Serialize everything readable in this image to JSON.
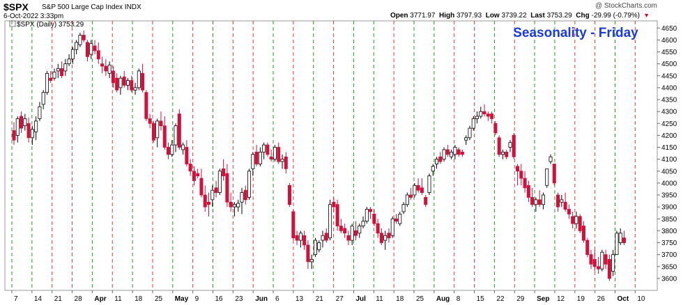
{
  "header": {
    "ticker": "$SPX",
    "name": "S&P 500 Large Cap Index",
    "exchange": "INDX",
    "datetime": "6-Oct-2022 3:33pm",
    "logo": "@ StockCharts.com",
    "open_label": "Open",
    "open": "3771.97",
    "high_label": "High",
    "high": "3797.93",
    "low_label": "Low",
    "low": "3739.22",
    "last_label": "Last",
    "last": "3753.29",
    "chg_label": "Chg",
    "chg": "-29.99 (-0.79%)",
    "chg_icon": "down-triangle-icon",
    "legend": "$SPX (Daily) 3753.29"
  },
  "colors": {
    "up": "#ffffff",
    "down": "#d3103a",
    "vline_red": "#e23a3a",
    "vline_green": "#239a23",
    "title": "#1a3ae0"
  },
  "chart_data": {
    "type": "candlestick",
    "title": "Seasonality - Friday",
    "ylim": [
      3550,
      4680
    ],
    "yticks": [
      3600,
      3650,
      3700,
      3750,
      3800,
      3850,
      3900,
      3950,
      4000,
      4050,
      4100,
      4150,
      4200,
      4250,
      4300,
      4350,
      4400,
      4450,
      4500,
      4550,
      4600,
      4650
    ],
    "xtick_labels": [
      "7",
      "14",
      "21",
      "28",
      "Apr",
      "11",
      "18",
      "25",
      "May",
      "9",
      "16",
      "23",
      "Jun",
      "6",
      "13",
      "21",
      "27",
      "Jul",
      "11",
      "18",
      "25",
      "Aug",
      "8",
      "15",
      "22",
      "29",
      "Sep",
      "12",
      "19",
      "26",
      "Oct",
      "10"
    ],
    "xtick_bold": [
      "Apr",
      "May",
      "Jun",
      "Jul",
      "Aug",
      "Sep",
      "Oct"
    ],
    "vertical_lines": {
      "red_friday_weeks": [
        2,
        3,
        5,
        7,
        9,
        11,
        12,
        14,
        16,
        19,
        22,
        23,
        25,
        28,
        29,
        31
      ],
      "green_friday_weeks": [
        0,
        1,
        4,
        6,
        8,
        10,
        13,
        15,
        17,
        18,
        20,
        21,
        24,
        26,
        27,
        30
      ]
    },
    "bars": [
      {
        "o": 4220,
        "h": 4255,
        "l": 4160,
        "c": 4180
      },
      {
        "o": 4200,
        "h": 4280,
        "l": 4170,
        "c": 4270
      },
      {
        "o": 4280,
        "h": 4300,
        "l": 4210,
        "c": 4230
      },
      {
        "o": 4240,
        "h": 4290,
        "l": 4220,
        "c": 4270
      },
      {
        "o": 4250,
        "h": 4275,
        "l": 4170,
        "c": 4190
      },
      {
        "o": 4190,
        "h": 4240,
        "l": 4160,
        "c": 4225
      },
      {
        "o": 4215,
        "h": 4280,
        "l": 4180,
        "c": 4260
      },
      {
        "o": 4270,
        "h": 4340,
        "l": 4260,
        "c": 4320
      },
      {
        "o": 4330,
        "h": 4390,
        "l": 4310,
        "c": 4380
      },
      {
        "o": 4380,
        "h": 4470,
        "l": 4370,
        "c": 4460
      },
      {
        "o": 4440,
        "h": 4470,
        "l": 4420,
        "c": 4430
      },
      {
        "o": 4440,
        "h": 4480,
        "l": 4430,
        "c": 4465
      },
      {
        "o": 4470,
        "h": 4500,
        "l": 4440,
        "c": 4480
      },
      {
        "o": 4480,
        "h": 4510,
        "l": 4440,
        "c": 4450
      },
      {
        "o": 4470,
        "h": 4520,
        "l": 4450,
        "c": 4500
      },
      {
        "o": 4500,
        "h": 4540,
        "l": 4490,
        "c": 4520
      },
      {
        "o": 4520,
        "h": 4570,
        "l": 4500,
        "c": 4560
      },
      {
        "o": 4560,
        "h": 4600,
        "l": 4540,
        "c": 4590
      },
      {
        "o": 4580,
        "h": 4630,
        "l": 4570,
        "c": 4620
      },
      {
        "o": 4620,
        "h": 4640,
        "l": 4590,
        "c": 4600
      },
      {
        "o": 4590,
        "h": 4600,
        "l": 4510,
        "c": 4530
      },
      {
        "o": 4540,
        "h": 4600,
        "l": 4520,
        "c": 4585
      },
      {
        "o": 4575,
        "h": 4600,
        "l": 4540,
        "c": 4555
      },
      {
        "o": 4555,
        "h": 4590,
        "l": 4500,
        "c": 4520
      },
      {
        "o": 4500,
        "h": 4530,
        "l": 4460,
        "c": 4490
      },
      {
        "o": 4490,
        "h": 4520,
        "l": 4450,
        "c": 4470
      },
      {
        "o": 4460,
        "h": 4510,
        "l": 4440,
        "c": 4495
      },
      {
        "o": 4470,
        "h": 4490,
        "l": 4400,
        "c": 4420
      },
      {
        "o": 4440,
        "h": 4460,
        "l": 4380,
        "c": 4390
      },
      {
        "o": 4400,
        "h": 4450,
        "l": 4370,
        "c": 4440
      },
      {
        "o": 4445,
        "h": 4470,
        "l": 4400,
        "c": 4410
      },
      {
        "o": 4410,
        "h": 4440,
        "l": 4390,
        "c": 4430
      },
      {
        "o": 4430,
        "h": 4450,
        "l": 4380,
        "c": 4390
      },
      {
        "o": 4390,
        "h": 4420,
        "l": 4370,
        "c": 4400
      },
      {
        "o": 4400,
        "h": 4480,
        "l": 4390,
        "c": 4470
      },
      {
        "o": 4460,
        "h": 4500,
        "l": 4380,
        "c": 4390
      },
      {
        "o": 4380,
        "h": 4390,
        "l": 4260,
        "c": 4270
      },
      {
        "o": 4270,
        "h": 4290,
        "l": 4230,
        "c": 4250
      },
      {
        "o": 4250,
        "h": 4260,
        "l": 4170,
        "c": 4180
      },
      {
        "o": 4190,
        "h": 4270,
        "l": 4150,
        "c": 4260
      },
      {
        "o": 4260,
        "h": 4300,
        "l": 4220,
        "c": 4240
      },
      {
        "o": 4240,
        "h": 4280,
        "l": 4140,
        "c": 4150
      },
      {
        "o": 4150,
        "h": 4170,
        "l": 4100,
        "c": 4120
      },
      {
        "o": 4120,
        "h": 4180,
        "l": 4110,
        "c": 4160
      },
      {
        "o": 4160,
        "h": 4250,
        "l": 4130,
        "c": 4240
      },
      {
        "o": 4290,
        "h": 4310,
        "l": 4140,
        "c": 4150
      },
      {
        "o": 4140,
        "h": 4170,
        "l": 4120,
        "c": 4160
      },
      {
        "o": 4150,
        "h": 4180,
        "l": 4070,
        "c": 4080
      },
      {
        "o": 4080,
        "h": 4100,
        "l": 4030,
        "c": 4050
      },
      {
        "o": 4050,
        "h": 4070,
        "l": 3990,
        "c": 4010
      },
      {
        "o": 4040,
        "h": 4060,
        "l": 4020,
        "c": 4030
      },
      {
        "o": 4020,
        "h": 4060,
        "l": 3940,
        "c": 3950
      },
      {
        "o": 3950,
        "h": 3990,
        "l": 3880,
        "c": 3900
      },
      {
        "o": 3920,
        "h": 3960,
        "l": 3860,
        "c": 3910
      },
      {
        "o": 3930,
        "h": 3990,
        "l": 3900,
        "c": 3970
      },
      {
        "o": 3980,
        "h": 4010,
        "l": 3940,
        "c": 3960
      },
      {
        "o": 3960,
        "h": 4060,
        "l": 3950,
        "c": 4050
      },
      {
        "o": 4060,
        "h": 4100,
        "l": 4010,
        "c": 4030
      },
      {
        "o": 4040,
        "h": 4080,
        "l": 3900,
        "c": 3920
      },
      {
        "o": 3920,
        "h": 3960,
        "l": 3880,
        "c": 3900
      },
      {
        "o": 3900,
        "h": 3920,
        "l": 3860,
        "c": 3910
      },
      {
        "o": 3900,
        "h": 3930,
        "l": 3880,
        "c": 3915
      },
      {
        "o": 3920,
        "h": 3980,
        "l": 3870,
        "c": 3960
      },
      {
        "o": 3970,
        "h": 3990,
        "l": 3910,
        "c": 3930
      },
      {
        "o": 3940,
        "h": 4060,
        "l": 3930,
        "c": 4050
      },
      {
        "o": 4060,
        "h": 4130,
        "l": 4030,
        "c": 4120
      },
      {
        "o": 4130,
        "h": 4160,
        "l": 4070,
        "c": 4080
      },
      {
        "o": 4080,
        "h": 4150,
        "l": 4070,
        "c": 4130
      },
      {
        "o": 4130,
        "h": 4170,
        "l": 4100,
        "c": 4160
      },
      {
        "o": 4160,
        "h": 4170,
        "l": 4110,
        "c": 4120
      },
      {
        "o": 4110,
        "h": 4140,
        "l": 4090,
        "c": 4100
      },
      {
        "o": 4100,
        "h": 4160,
        "l": 4090,
        "c": 4150
      },
      {
        "o": 4150,
        "h": 4170,
        "l": 4080,
        "c": 4090
      },
      {
        "o": 4090,
        "h": 4120,
        "l": 4060,
        "c": 4100
      },
      {
        "o": 4110,
        "h": 4130,
        "l": 4040,
        "c": 4060
      },
      {
        "o": 3990,
        "h": 4000,
        "l": 3900,
        "c": 3910
      },
      {
        "o": 3880,
        "h": 3890,
        "l": 3760,
        "c": 3770
      },
      {
        "o": 3780,
        "h": 3800,
        "l": 3740,
        "c": 3760
      },
      {
        "o": 3760,
        "h": 3800,
        "l": 3730,
        "c": 3790
      },
      {
        "o": 3780,
        "h": 3800,
        "l": 3720,
        "c": 3740
      },
      {
        "o": 3740,
        "h": 3760,
        "l": 3640,
        "c": 3670
      },
      {
        "o": 3670,
        "h": 3700,
        "l": 3640,
        "c": 3680
      },
      {
        "o": 3700,
        "h": 3770,
        "l": 3690,
        "c": 3760
      },
      {
        "o": 3720,
        "h": 3760,
        "l": 3710,
        "c": 3750
      },
      {
        "o": 3760,
        "h": 3800,
        "l": 3730,
        "c": 3780
      },
      {
        "o": 3790,
        "h": 3810,
        "l": 3750,
        "c": 3760
      },
      {
        "o": 3770,
        "h": 3930,
        "l": 3760,
        "c": 3910
      },
      {
        "o": 3920,
        "h": 3940,
        "l": 3880,
        "c": 3900
      },
      {
        "o": 3910,
        "h": 3930,
        "l": 3800,
        "c": 3820
      },
      {
        "o": 3820,
        "h": 3850,
        "l": 3790,
        "c": 3800
      },
      {
        "o": 3810,
        "h": 3830,
        "l": 3770,
        "c": 3790
      },
      {
        "o": 3780,
        "h": 3800,
        "l": 3740,
        "c": 3760
      },
      {
        "o": 3760,
        "h": 3830,
        "l": 3740,
        "c": 3820
      },
      {
        "o": 3800,
        "h": 3840,
        "l": 3760,
        "c": 3780
      },
      {
        "o": 3790,
        "h": 3830,
        "l": 3770,
        "c": 3820
      },
      {
        "o": 3820,
        "h": 3860,
        "l": 3810,
        "c": 3840
      },
      {
        "o": 3840,
        "h": 3900,
        "l": 3830,
        "c": 3890
      },
      {
        "o": 3890,
        "h": 3900,
        "l": 3850,
        "c": 3880
      },
      {
        "o": 3870,
        "h": 3890,
        "l": 3820,
        "c": 3830
      },
      {
        "o": 3830,
        "h": 3850,
        "l": 3770,
        "c": 3790
      },
      {
        "o": 3790,
        "h": 3810,
        "l": 3740,
        "c": 3750
      },
      {
        "o": 3760,
        "h": 3800,
        "l": 3720,
        "c": 3780
      },
      {
        "o": 3790,
        "h": 3810,
        "l": 3750,
        "c": 3770
      },
      {
        "o": 3780,
        "h": 3860,
        "l": 3770,
        "c": 3850
      },
      {
        "o": 3850,
        "h": 3870,
        "l": 3830,
        "c": 3840
      },
      {
        "o": 3830,
        "h": 3880,
        "l": 3820,
        "c": 3870
      },
      {
        "o": 3880,
        "h": 3920,
        "l": 3870,
        "c": 3910
      },
      {
        "o": 3910,
        "h": 3960,
        "l": 3900,
        "c": 3950
      },
      {
        "o": 3950,
        "h": 3980,
        "l": 3930,
        "c": 3940
      },
      {
        "o": 3950,
        "h": 4000,
        "l": 3940,
        "c": 3990
      },
      {
        "o": 3990,
        "h": 4020,
        "l": 3960,
        "c": 3970
      },
      {
        "o": 3980,
        "h": 4020,
        "l": 3950,
        "c": 3960
      },
      {
        "o": 3940,
        "h": 3950,
        "l": 3900,
        "c": 3910
      },
      {
        "o": 3960,
        "h": 4040,
        "l": 3950,
        "c": 4030
      },
      {
        "o": 4050,
        "h": 4080,
        "l": 4030,
        "c": 4070
      },
      {
        "o": 4080,
        "h": 4110,
        "l": 4060,
        "c": 4100
      },
      {
        "o": 4110,
        "h": 4130,
        "l": 4080,
        "c": 4090
      },
      {
        "o": 4100,
        "h": 4150,
        "l": 4090,
        "c": 4140
      },
      {
        "o": 4140,
        "h": 4160,
        "l": 4110,
        "c": 4120
      },
      {
        "o": 4110,
        "h": 4140,
        "l": 4100,
        "c": 4130
      },
      {
        "o": 4120,
        "h": 4160,
        "l": 4100,
        "c": 4150
      },
      {
        "o": 4140,
        "h": 4150,
        "l": 4110,
        "c": 4120
      },
      {
        "o": 4130,
        "h": 4140,
        "l": 4110,
        "c": 4120
      },
      {
        "o": 4180,
        "h": 4200,
        "l": 4160,
        "c": 4190
      },
      {
        "o": 4190,
        "h": 4240,
        "l": 4180,
        "c": 4230
      },
      {
        "o": 4230,
        "h": 4280,
        "l": 4220,
        "c": 4270
      },
      {
        "o": 4270,
        "h": 4300,
        "l": 4250,
        "c": 4280
      },
      {
        "o": 4280,
        "h": 4320,
        "l": 4270,
        "c": 4300
      },
      {
        "o": 4300,
        "h": 4330,
        "l": 4280,
        "c": 4290
      },
      {
        "o": 4290,
        "h": 4300,
        "l": 4260,
        "c": 4280
      },
      {
        "o": 4290,
        "h": 4300,
        "l": 4250,
        "c": 4270
      },
      {
        "o": 4250,
        "h": 4260,
        "l": 4200,
        "c": 4210
      },
      {
        "o": 4190,
        "h": 4200,
        "l": 4110,
        "c": 4120
      },
      {
        "o": 4120,
        "h": 4140,
        "l": 4100,
        "c": 4130
      },
      {
        "o": 4130,
        "h": 4140,
        "l": 4100,
        "c": 4110
      },
      {
        "o": 4150,
        "h": 4180,
        "l": 4130,
        "c": 4170
      },
      {
        "o": 4200,
        "h": 4210,
        "l": 4100,
        "c": 4110
      },
      {
        "o": 4070,
        "h": 4080,
        "l": 3990,
        "c": 4050
      },
      {
        "o": 4050,
        "h": 4080,
        "l": 3990,
        "c": 4020
      },
      {
        "o": 4020,
        "h": 4050,
        "l": 3960,
        "c": 3980
      },
      {
        "o": 3990,
        "h": 4010,
        "l": 3920,
        "c": 3940
      },
      {
        "o": 3940,
        "h": 3980,
        "l": 3900,
        "c": 3910
      },
      {
        "o": 3910,
        "h": 3940,
        "l": 3880,
        "c": 3930
      },
      {
        "o": 3930,
        "h": 3970,
        "l": 3900,
        "c": 3910
      },
      {
        "o": 3910,
        "h": 3960,
        "l": 3890,
        "c": 3950
      },
      {
        "o": 3990,
        "h": 4060,
        "l": 3980,
        "c": 4060
      },
      {
        "o": 4090,
        "h": 4120,
        "l": 4080,
        "c": 4110
      },
      {
        "o": 4080,
        "h": 4080,
        "l": 3990,
        "c": 4000
      },
      {
        "o": 3950,
        "h": 3960,
        "l": 3880,
        "c": 3900
      },
      {
        "o": 3920,
        "h": 3950,
        "l": 3900,
        "c": 3930
      },
      {
        "o": 3920,
        "h": 3960,
        "l": 3880,
        "c": 3890
      },
      {
        "o": 3890,
        "h": 3910,
        "l": 3850,
        "c": 3870
      },
      {
        "o": 3860,
        "h": 3880,
        "l": 3810,
        "c": 3830
      },
      {
        "o": 3830,
        "h": 3880,
        "l": 3810,
        "c": 3860
      },
      {
        "o": 3860,
        "h": 3870,
        "l": 3790,
        "c": 3800
      },
      {
        "o": 3820,
        "h": 3840,
        "l": 3750,
        "c": 3760
      },
      {
        "o": 3760,
        "h": 3770,
        "l": 3690,
        "c": 3700
      },
      {
        "o": 3700,
        "h": 3720,
        "l": 3640,
        "c": 3660
      },
      {
        "o": 3680,
        "h": 3720,
        "l": 3630,
        "c": 3650
      },
      {
        "o": 3650,
        "h": 3690,
        "l": 3620,
        "c": 3640
      },
      {
        "o": 3640,
        "h": 3720,
        "l": 3630,
        "c": 3710
      },
      {
        "o": 3700,
        "h": 3720,
        "l": 3640,
        "c": 3660
      },
      {
        "o": 3680,
        "h": 3700,
        "l": 3590,
        "c": 3600
      },
      {
        "o": 3630,
        "h": 3720,
        "l": 3610,
        "c": 3700
      },
      {
        "o": 3700,
        "h": 3800,
        "l": 3700,
        "c": 3790
      },
      {
        "o": 3750,
        "h": 3810,
        "l": 3740,
        "c": 3790
      },
      {
        "o": 3770,
        "h": 3800,
        "l": 3740,
        "c": 3750
      }
    ]
  }
}
